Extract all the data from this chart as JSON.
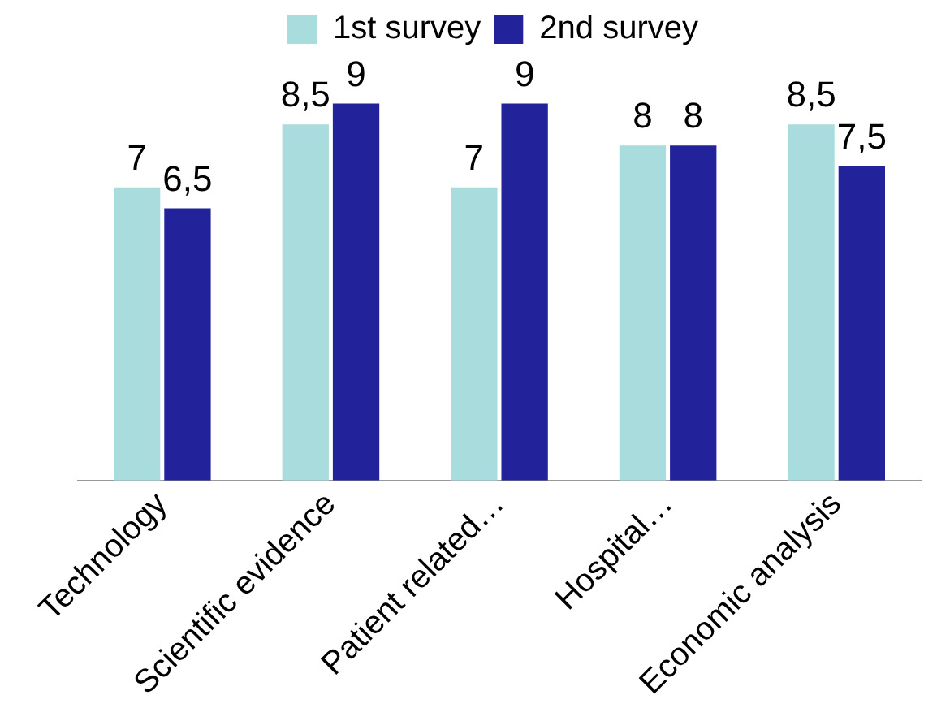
{
  "chart_data": {
    "type": "bar",
    "categories": [
      "Technology",
      "Scientific evidence",
      "Patient related…",
      "Hospital…",
      "Economic analysis"
    ],
    "series": [
      {
        "name": "1st survey",
        "color": "#a9dcdc",
        "values": [
          7,
          8.5,
          7,
          8,
          8.5
        ],
        "value_labels": [
          "7",
          "8,5",
          "7",
          "8",
          "8,5"
        ]
      },
      {
        "name": "2nd survey",
        "color": "#22229a",
        "values": [
          6.5,
          9,
          9,
          8,
          7.5
        ],
        "value_labels": [
          "6,5",
          "9",
          "9",
          "8",
          "7,5"
        ]
      }
    ],
    "tick_labels": "x",
    "grid": false,
    "legend": "top"
  }
}
